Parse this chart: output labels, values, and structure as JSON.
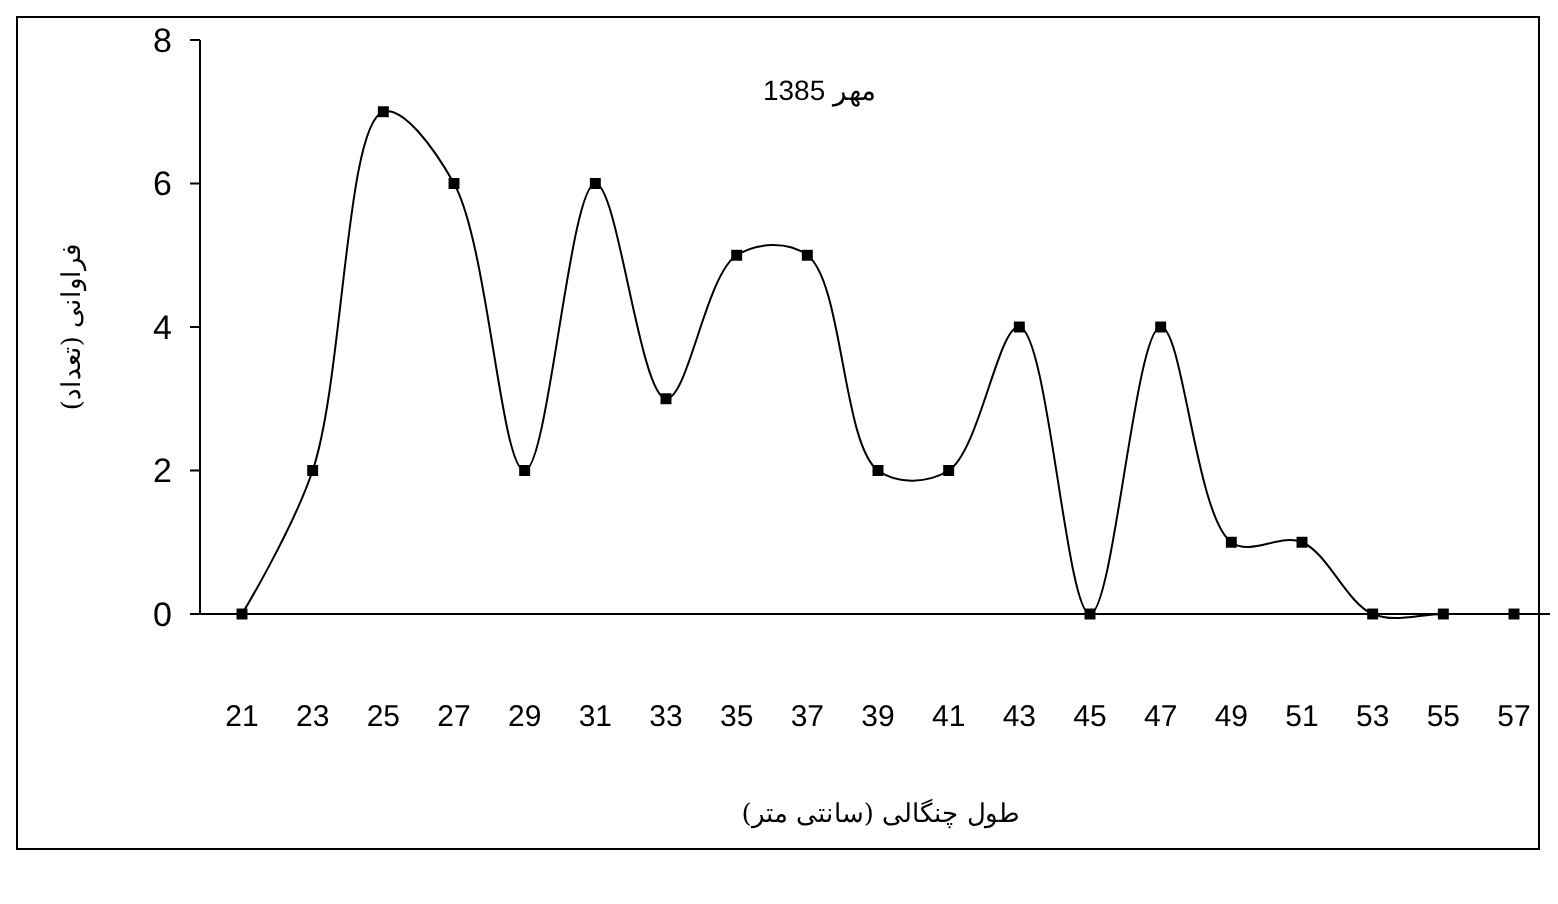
{
  "chart_data": {
    "type": "line",
    "title": "مهر 1385",
    "xlabel": "طول چنگالی (سانتی متر)",
    "ylabel": "فراوانی (تعداد)",
    "categories": [
      "21",
      "23",
      "25",
      "27",
      "29",
      "31",
      "33",
      "35",
      "37",
      "39",
      "41",
      "43",
      "45",
      "47",
      "49",
      "51",
      "53",
      "55",
      "57"
    ],
    "series": [
      {
        "color": "#000000",
        "values": [
          0,
          2,
          7,
          6,
          2,
          6,
          3,
          5,
          5,
          2,
          2,
          4,
          0,
          4,
          1,
          1,
          0,
          0,
          0
        ]
      }
    ],
    "ylim": [
      0,
      8
    ],
    "yticks": [
      0,
      2,
      4,
      6,
      8
    ],
    "grid": false,
    "marker": "square",
    "line_style": "solid"
  }
}
